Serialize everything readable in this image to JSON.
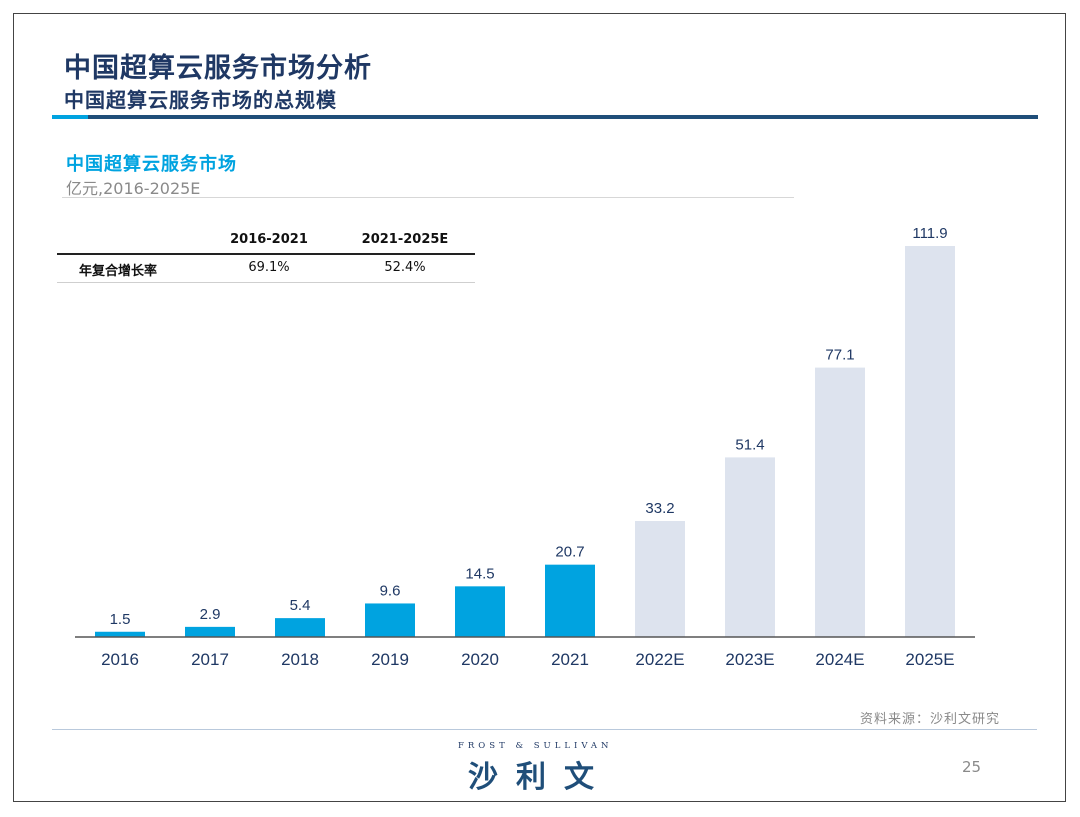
{
  "header": {
    "title": "中国超算云服务市场分析",
    "subtitle": "中国超算云服务市场的总规模"
  },
  "chart_header": {
    "title": "中国超算云服务市场",
    "unit": "亿元,2016-2025E"
  },
  "cagr_table": {
    "row_label": "年复合增长率",
    "columns": [
      {
        "period": "2016-2021",
        "value": "69.1%"
      },
      {
        "period": "2021-2025E",
        "value": "52.4%"
      }
    ]
  },
  "chart_data": {
    "type": "bar",
    "title": "中国超算云服务市场",
    "ylabel": "亿元",
    "categories": [
      "2016",
      "2017",
      "2018",
      "2019",
      "2020",
      "2021",
      "2022E",
      "2023E",
      "2024E",
      "2025E"
    ],
    "values": [
      1.5,
      2.9,
      5.4,
      9.6,
      14.5,
      20.7,
      33.2,
      51.4,
      77.1,
      111.9
    ],
    "value_labels": [
      "1.5",
      "2.9",
      "5.4",
      "9.6",
      "14.5",
      "20.7",
      "33.2",
      "51.4",
      "77.1",
      "111.9"
    ],
    "ylim": [
      0,
      111.9
    ],
    "grid": false,
    "colors": {
      "actual": "#00a3e0",
      "forecast": "#dde3ee",
      "label": "#1f3864",
      "axis": "#555555"
    },
    "forecast_from_index": 6
  },
  "source": "资料来源：沙利文研究",
  "logo": {
    "english": "FROST & SULLIVAN",
    "chinese": "沙利文"
  },
  "page_number": "25"
}
